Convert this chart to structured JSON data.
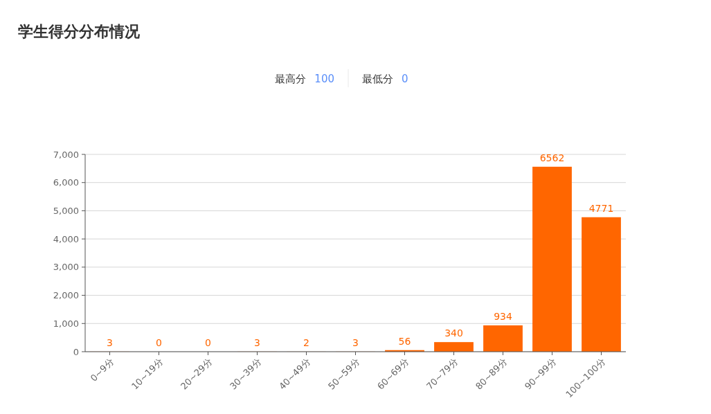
{
  "chart_data": {
    "type": "bar",
    "title": "学生得分分布情况",
    "annotations": [
      "最高分 100",
      "最低分 0"
    ],
    "categories": [
      "0~9分",
      "10~19分",
      "20~29分",
      "30~39分",
      "40~49分",
      "50~59分",
      "60~69分",
      "70~79分",
      "80~89分",
      "90~99分",
      "100~100分"
    ],
    "values": [
      3,
      0,
      0,
      3,
      2,
      3,
      56,
      340,
      934,
      6562,
      4771
    ],
    "color": "#ff6600",
    "ylim": [
      0,
      7000
    ],
    "yticks": [
      0,
      {
        "value": 1000,
        "label": "1,000"
      },
      {
        "value": 2000,
        "label": "2,000"
      },
      {
        "value": 3000,
        "label": "3,000"
      },
      {
        "value": 4000,
        "label": "4,000"
      },
      {
        "value": 5000,
        "label": "5,000"
      },
      {
        "value": 6000,
        "label": "6,000"
      },
      {
        "value": 7000,
        "label": "7,000"
      }
    ],
    "grid": "y",
    "data_labels": true
  }
}
